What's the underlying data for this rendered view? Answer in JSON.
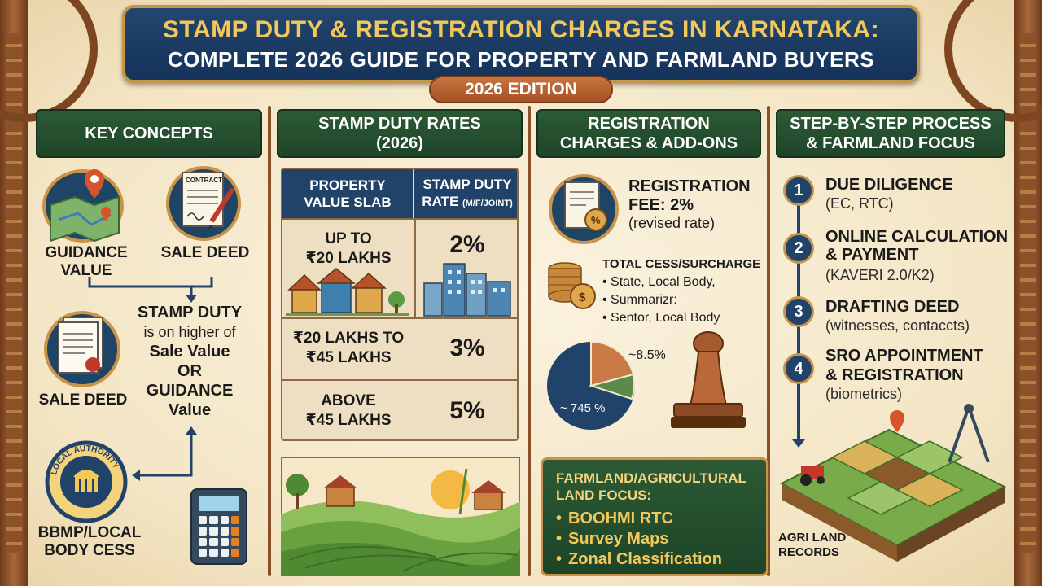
{
  "header": {
    "title_line1": "STAMP DUTY & REGISTRATION CHARGES IN KARNATAKA:",
    "title_line2": "COMPLETE 2026 GUIDE FOR PROPERTY AND FARMLAND BUYERS",
    "edition": "2026 EDITION"
  },
  "key_concepts": {
    "heading": "KEY CONCEPTS",
    "guidance_value_l1": "GUIDANCE",
    "guidance_value_l2": "VALUE",
    "contract_word": "CONTRACT",
    "sale_deed_top": "SALE DEED",
    "sale_deed_bottom": "SALE DEED",
    "stamp_duty_title": "STAMP DUTY",
    "stamp_duty_mid": "is on higher of",
    "stamp_duty_l3": "Sale Value",
    "stamp_duty_or": "OR",
    "stamp_duty_l5": "GUIDANCE",
    "stamp_duty_l6": "Value",
    "seal_text": "LOCAL AUTHORITY",
    "bbmp_l1": "BBMP/LOCAL",
    "bbmp_l2": "BODY CESS"
  },
  "stamp_rates": {
    "heading_l1": "STAMP DUTY RATES",
    "heading_l2": "(2026)",
    "col1_l1": "PROPERTY",
    "col1_l2": "VALUE SLAB",
    "col2_l1": "STAMP DUTY",
    "col2_l2": "RATE",
    "col2_small": "(M/F/JOINT)",
    "rows": [
      {
        "slab_l1": "UP TO",
        "slab_l2": "₹20 LAKHS",
        "rate": "2%"
      },
      {
        "slab_l1": "₹20 LAKHS TO",
        "slab_l2": "₹45 LAKHS",
        "rate": "3%"
      },
      {
        "slab_l1": "ABOVE",
        "slab_l2": "₹45 LAKHS",
        "rate": "5%"
      }
    ]
  },
  "registration": {
    "heading_l1": "REGISTRATION",
    "heading_l2": "CHARGES & ADD-ONS",
    "fee_l1": "REGISTRATION",
    "fee_l2": "FEE: 2%",
    "fee_sub": "(revised rate)",
    "doc_percent": "%",
    "coin_symbol": "$",
    "cess_title": "TOTAL CESS/SURCHARGE",
    "cess_items": [
      "State, Local Body,",
      "Summarizr:",
      "Sentor, Local Body"
    ],
    "pie_large_label": "~ 745 %",
    "pie_small_label": "~8.5%",
    "farmland_title_l1": "FARMLAND/AGRICULTURAL",
    "farmland_title_l2": "LAND FOCUS:",
    "farmland_items": [
      "BOOHMI RTC",
      "Survey Maps",
      "Zonal Classification"
    ]
  },
  "process": {
    "heading_l1": "STEP-BY-STEP PROCESS",
    "heading_l2": "& FARMLAND FOCUS",
    "steps": [
      {
        "num": "1",
        "title_l1": "DUE DILIGENCE",
        "title_l2": "",
        "sub": "(EC, RTC)"
      },
      {
        "num": "2",
        "title_l1": "ONLINE CALCULATION",
        "title_l2": "& PAYMENT",
        "sub": "(KAVERI 2.0/K2)"
      },
      {
        "num": "3",
        "title_l1": "DRAFTING DEED",
        "title_l2": "",
        "sub": "(witnesses, contaccts)"
      },
      {
        "num": "4",
        "title_l1": "SRO APPOINTMENT",
        "title_l2": "& REGISTRATION",
        "sub": "(biometrics)"
      }
    ],
    "agri_l1": "AGRI LAND",
    "agri_l2": "RECORDS"
  },
  "colors": {
    "navy": "#21436a",
    "green": "#1f4529",
    "gold": "#f3c85b",
    "copper": "#a55125"
  }
}
